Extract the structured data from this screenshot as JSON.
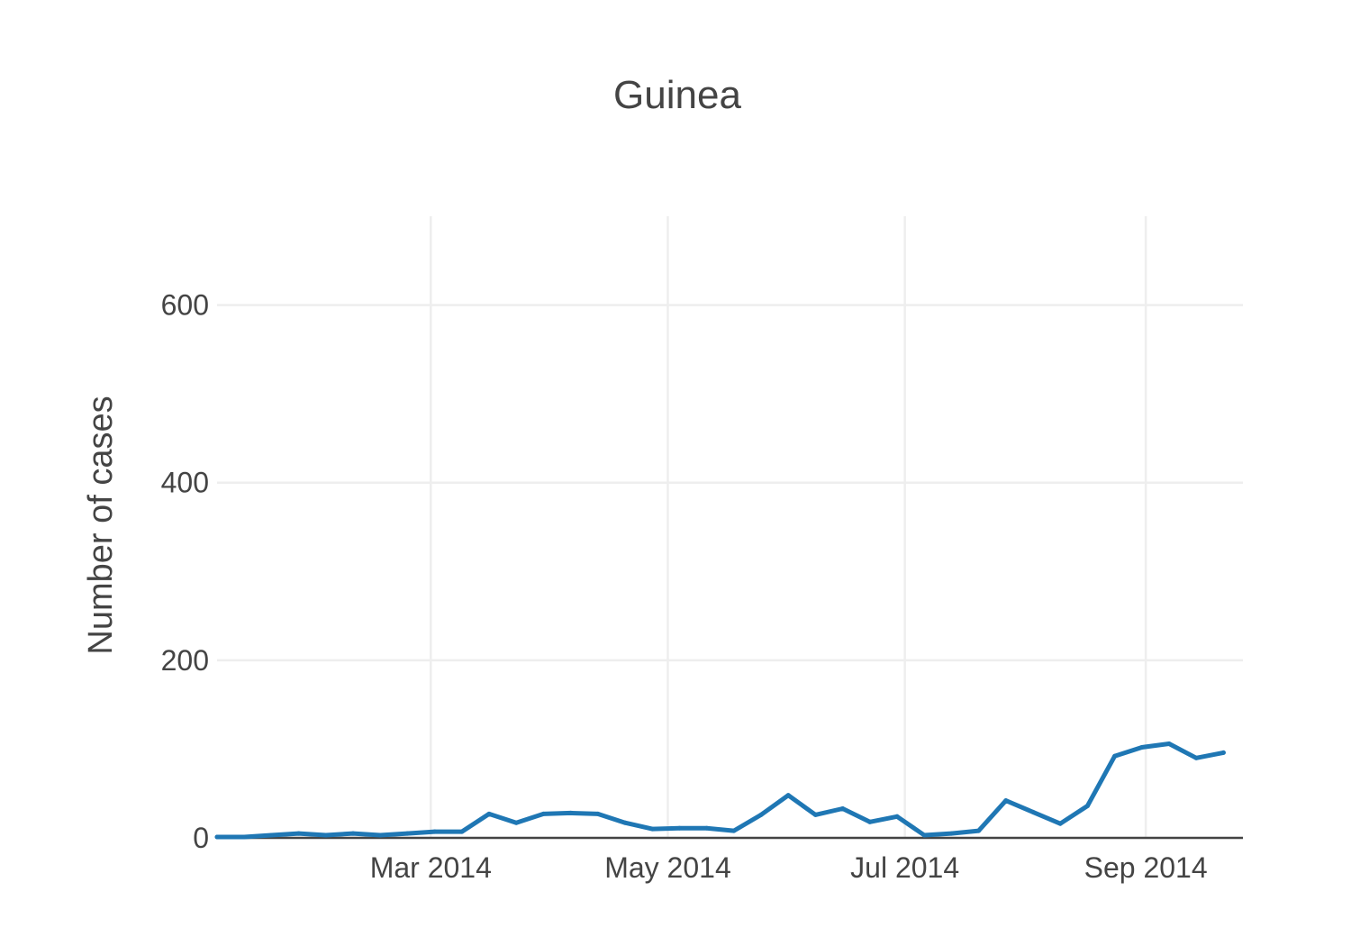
{
  "chart_data": {
    "type": "line",
    "title": "Guinea",
    "xlabel": "",
    "ylabel": "Number of cases",
    "xlim": [
      "2014-01-05",
      "2014-09-26"
    ],
    "ylim": [
      0,
      700
    ],
    "grid": true,
    "x_ticks": [
      {
        "date": "2014-03-01",
        "label": "Mar 2014"
      },
      {
        "date": "2014-05-01",
        "label": "May 2014"
      },
      {
        "date": "2014-07-01",
        "label": "Jul 2014"
      },
      {
        "date": "2014-09-01",
        "label": "Sep 2014"
      }
    ],
    "y_ticks": [
      {
        "value": 0,
        "label": "0"
      },
      {
        "value": 200,
        "label": "200"
      },
      {
        "value": 400,
        "label": "400"
      },
      {
        "value": 600,
        "label": "600"
      }
    ],
    "series": [
      {
        "color": "#1f77b4",
        "x": [
          "2014-01-05",
          "2014-01-12",
          "2014-01-19",
          "2014-01-26",
          "2014-02-02",
          "2014-02-09",
          "2014-02-16",
          "2014-02-23",
          "2014-03-02",
          "2014-03-09",
          "2014-03-16",
          "2014-03-23",
          "2014-03-30",
          "2014-04-06",
          "2014-04-13",
          "2014-04-20",
          "2014-04-27",
          "2014-05-04",
          "2014-05-11",
          "2014-05-18",
          "2014-05-25",
          "2014-06-01",
          "2014-06-08",
          "2014-06-15",
          "2014-06-22",
          "2014-06-29",
          "2014-07-06",
          "2014-07-13",
          "2014-07-20",
          "2014-07-27",
          "2014-08-03",
          "2014-08-10",
          "2014-08-17",
          "2014-08-24",
          "2014-08-31",
          "2014-09-07",
          "2014-09-14",
          "2014-09-21"
        ],
        "y": [
          1,
          1,
          3,
          5,
          3,
          5,
          3,
          5,
          7,
          7,
          27,
          17,
          27,
          28,
          27,
          17,
          10,
          11,
          11,
          8,
          26,
          48,
          26,
          33,
          18,
          24,
          3,
          5,
          8,
          42,
          29,
          16,
          36,
          92,
          102,
          106,
          90,
          96
        ]
      }
    ]
  }
}
